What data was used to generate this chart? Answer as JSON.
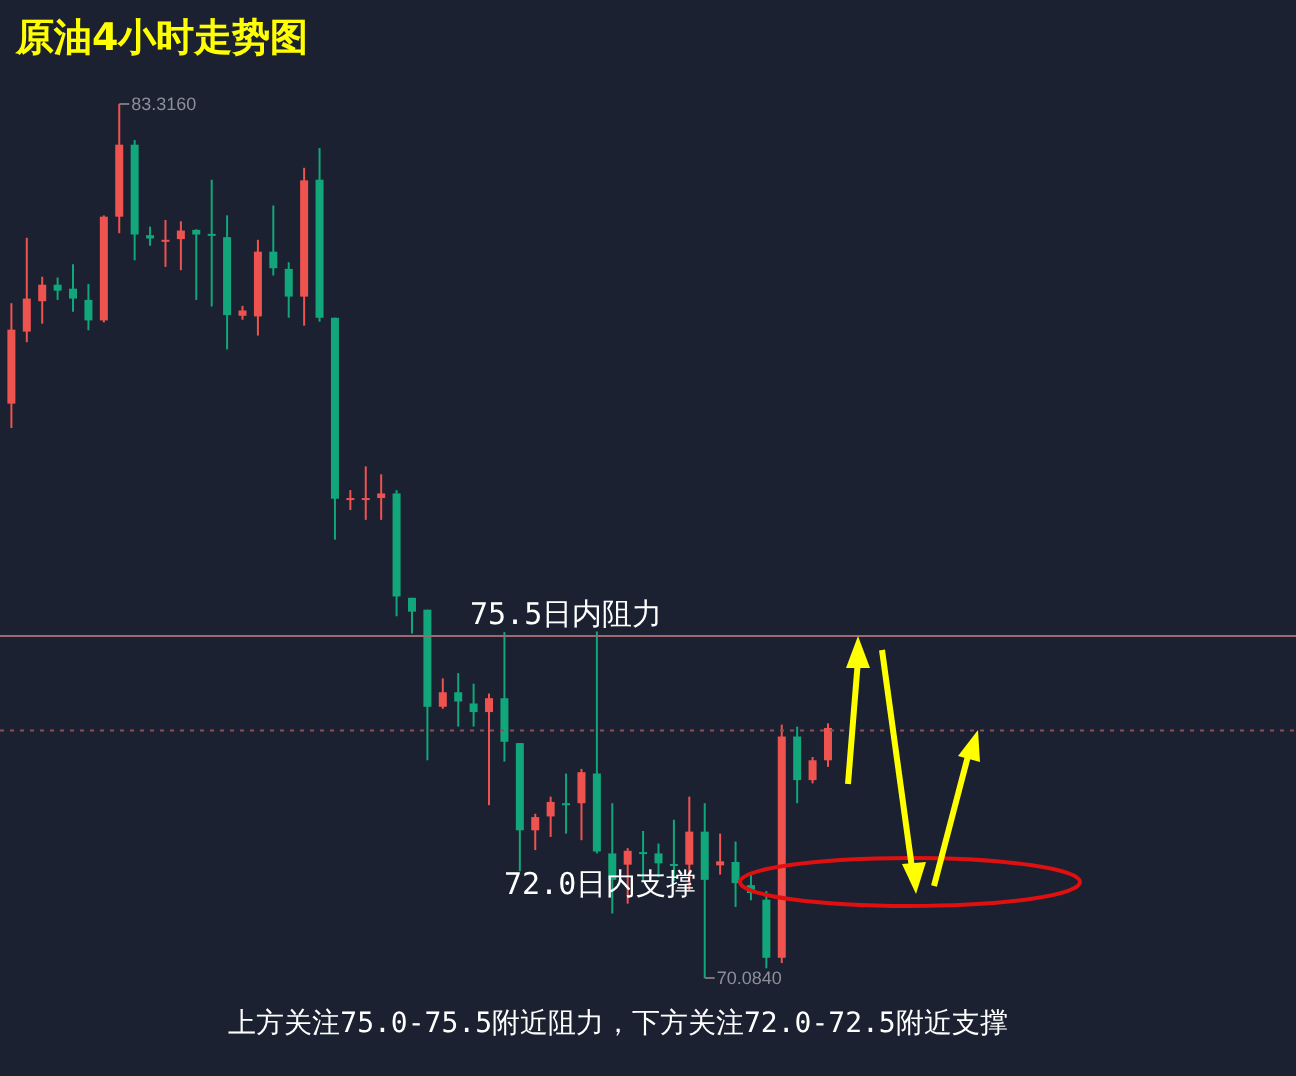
{
  "chart_data": {
    "type": "candlestick",
    "title": "原油4小时走势图",
    "categories": [
      null,
      null,
      null,
      null,
      null,
      null,
      null,
      null,
      null,
      null,
      null,
      null,
      null,
      null,
      null,
      null,
      null,
      null,
      null,
      null,
      null,
      null,
      null,
      null,
      null,
      null,
      null,
      null,
      null,
      null,
      null,
      null,
      null,
      null,
      null,
      null,
      null,
      null,
      null,
      null,
      null,
      null,
      null,
      null,
      null,
      null,
      null,
      null,
      null,
      null,
      null,
      null,
      null,
      null
    ],
    "ohlc": [
      [
        78.78,
        80.3,
        78.41,
        79.9
      ],
      [
        79.87,
        81.29,
        79.71,
        80.37
      ],
      [
        80.33,
        80.7,
        79.99,
        80.58
      ],
      [
        80.58,
        80.69,
        80.35,
        80.49
      ],
      [
        80.52,
        80.89,
        80.17,
        80.37
      ],
      [
        80.35,
        80.59,
        79.89,
        80.04
      ],
      [
        80.04,
        81.63,
        80.01,
        81.61
      ],
      [
        81.61,
        83.316,
        81.36,
        82.7
      ],
      [
        82.7,
        82.77,
        80.95,
        81.34
      ],
      [
        81.33,
        81.46,
        81.17,
        81.28
      ],
      [
        81.25,
        81.56,
        80.85,
        81.26
      ],
      [
        81.27,
        81.54,
        80.8,
        81.4
      ],
      [
        81.41,
        81.42,
        80.35,
        81.34
      ],
      [
        81.35,
        82.17,
        80.25,
        81.34
      ],
      [
        81.3,
        81.63,
        79.6,
        80.12
      ],
      [
        80.11,
        80.26,
        80.05,
        80.19
      ],
      [
        80.1,
        81.26,
        79.81,
        81.08
      ],
      [
        81.08,
        81.78,
        80.72,
        80.83
      ],
      [
        80.82,
        80.92,
        80.08,
        80.4
      ],
      [
        80.4,
        82.35,
        79.96,
        82.16
      ],
      [
        82.17,
        82.65,
        80.02,
        80.08
      ],
      [
        80.08,
        80.08,
        76.72,
        77.34
      ],
      [
        77.33,
        77.47,
        77.17,
        77.35
      ],
      [
        77.34,
        77.83,
        77.02,
        77.35
      ],
      [
        77.35,
        77.71,
        77.02,
        77.42
      ],
      [
        77.42,
        77.47,
        75.56,
        75.86
      ],
      [
        75.84,
        75.84,
        75.3,
        75.63
      ],
      [
        75.66,
        75.66,
        73.38,
        74.19
      ],
      [
        74.19,
        74.62,
        74.16,
        74.41
      ],
      [
        74.41,
        74.7,
        73.89,
        74.27
      ],
      [
        74.24,
        74.54,
        73.89,
        74.11
      ],
      [
        74.11,
        74.39,
        72.7,
        74.32
      ],
      [
        74.32,
        75.32,
        73.36,
        73.66
      ],
      [
        73.64,
        73.64,
        71.7,
        72.32
      ],
      [
        72.32,
        72.57,
        72.02,
        72.52
      ],
      [
        72.53,
        72.83,
        72.22,
        72.75
      ],
      [
        72.73,
        73.18,
        72.27,
        72.72
      ],
      [
        72.73,
        73.25,
        72.17,
        73.2
      ],
      [
        73.18,
        75.33,
        71.97,
        72.0
      ],
      [
        71.97,
        72.73,
        71.06,
        71.57
      ],
      [
        71.8,
        72.05,
        71.21,
        72.01
      ],
      [
        71.99,
        72.31,
        71.55,
        71.98
      ],
      [
        71.97,
        72.12,
        71.61,
        71.82
      ],
      [
        71.81,
        72.48,
        71.55,
        71.8
      ],
      [
        71.8,
        72.83,
        71.41,
        72.3
      ],
      [
        72.3,
        72.73,
        70.084,
        71.57
      ],
      [
        71.79,
        72.27,
        71.65,
        71.85
      ],
      [
        71.84,
        72.15,
        71.16,
        71.52
      ],
      [
        71.49,
        71.69,
        71.26,
        71.37
      ],
      [
        71.27,
        71.4,
        70.23,
        70.39
      ],
      [
        70.39,
        73.92,
        70.31,
        73.74
      ],
      [
        73.74,
        73.89,
        72.73,
        73.08
      ],
      [
        73.08,
        73.43,
        73.03,
        73.38
      ],
      [
        73.38,
        73.94,
        73.28,
        73.87
      ]
    ],
    "ref_lines": [
      {
        "axis": "y",
        "value": 75.26,
        "label": "75.5日内阻力",
        "color": "#9c6a6e"
      },
      {
        "axis": "y",
        "value": 73.83,
        "color": "#8c4f55",
        "line_style": "dotted"
      }
    ],
    "annotations": [
      "83.3160",
      "70.0840",
      "72.0日内支撑",
      "上方关注75.0-75.5附近阻力，下方关注72.0-72.5附近支撑"
    ]
  }
}
